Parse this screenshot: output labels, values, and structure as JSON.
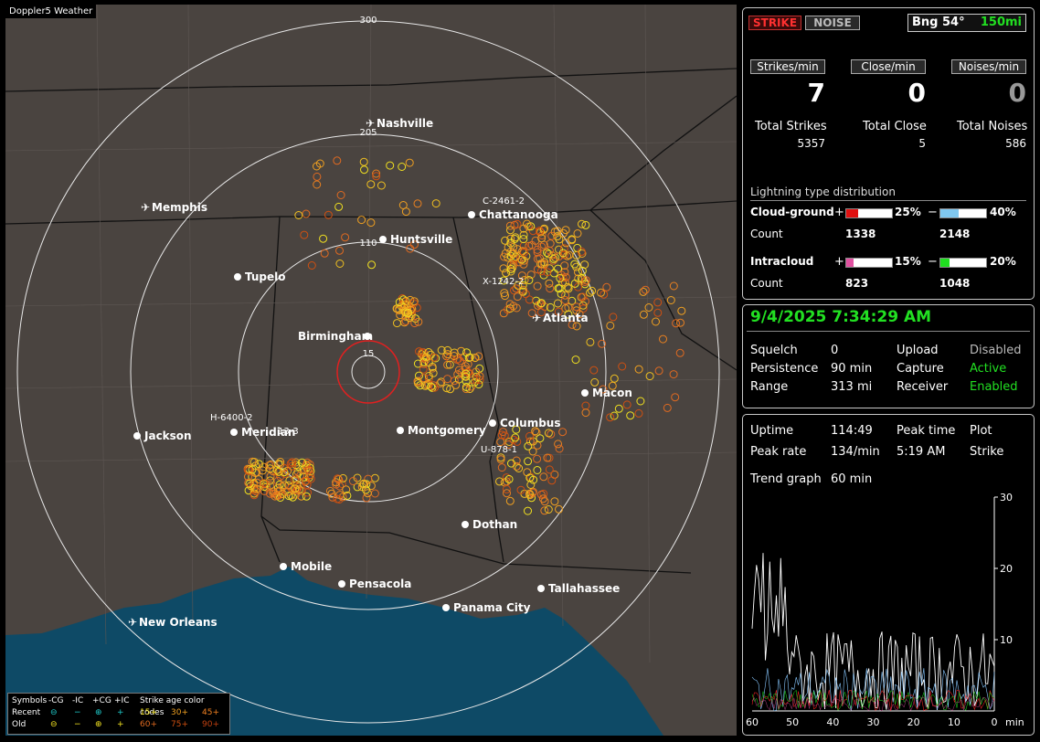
{
  "app_title": "Doppler5 Weather",
  "map": {
    "range_labels": [
      "300",
      "205",
      "110",
      "15"
    ],
    "cities": [
      {
        "name": "Nashville",
        "type": "airport"
      },
      {
        "name": "Memphis",
        "type": "airport"
      },
      {
        "name": "Chattanooga",
        "type": "city"
      },
      {
        "name": "Huntsville",
        "type": "city"
      },
      {
        "name": "Tupelo",
        "type": "city"
      },
      {
        "name": "Atlanta",
        "type": "airport"
      },
      {
        "name": "Birmingham",
        "type": "city"
      },
      {
        "name": "Macon",
        "type": "city"
      },
      {
        "name": "Columbus",
        "type": "city"
      },
      {
        "name": "Jackson",
        "type": "city"
      },
      {
        "name": "Meridian",
        "type": "city"
      },
      {
        "name": "Montgomery",
        "type": "city"
      },
      {
        "name": "Dothan",
        "type": "city"
      },
      {
        "name": "Mobile",
        "type": "city"
      },
      {
        "name": "Pensacola",
        "type": "city"
      },
      {
        "name": "Tallahassee",
        "type": "city"
      },
      {
        "name": "Panama City",
        "type": "city"
      },
      {
        "name": "New Orleans",
        "type": "airport"
      }
    ],
    "storm_labels": [
      "C-2461-2",
      "X-1242-2",
      "H-6400-2",
      "U-878-1",
      "13-3"
    ],
    "legend": {
      "row_labels": [
        "Symbols",
        "Recent",
        "Old"
      ],
      "type_headers": [
        "-CG",
        "-IC",
        "+CG",
        "+IC"
      ],
      "age_header": "Strike age color codes",
      "recent_ages": [
        "15+",
        "30+",
        "45+"
      ],
      "old_ages": [
        "60+",
        "75+",
        "90+"
      ]
    }
  },
  "top": {
    "strike_btn": "STRIKE",
    "noise_btn": "NOISE",
    "bearing": "Bng 54°",
    "range": "150mi",
    "strikes_min_label": "Strikes/min",
    "close_min_label": "Close/min",
    "noises_min_label": "Noises/min",
    "strikes_min": "7",
    "close_min": "0",
    "noises_min": "0",
    "total_strikes_label": "Total Strikes",
    "total_close_label": "Total Close",
    "total_noises_label": "Total Noises",
    "total_strikes": "5357",
    "total_close": "5",
    "total_noises": "586",
    "dist_title": "Lightning type distribution",
    "cg_label": "Cloud-ground",
    "ic_label": "Intracloud",
    "count_label": "Count",
    "plus": "+",
    "minus": "−",
    "cg_plus_pct": "25%",
    "cg_minus_pct": "40%",
    "cg_plus_count": "1338",
    "cg_minus_count": "2148",
    "ic_plus_pct": "15%",
    "ic_minus_pct": "20%",
    "ic_plus_count": "823",
    "ic_minus_count": "1048",
    "cg_plus_frac": 0.25,
    "cg_minus_frac": 0.4,
    "ic_plus_frac": 0.15,
    "ic_minus_frac": 0.2
  },
  "status": {
    "datetime": "9/4/2025 7:34:29 AM",
    "squelch_label": "Squelch",
    "squelch": "0",
    "persistence_label": "Persistence",
    "persistence": "90 min",
    "range_label": "Range",
    "range": "313 mi",
    "upload_label": "Upload",
    "upload": "Disabled",
    "capture_label": "Capture",
    "capture": "Active",
    "receiver_label": "Receiver",
    "receiver": "Enabled"
  },
  "stats": {
    "uptime_label": "Uptime",
    "uptime": "114:49",
    "peak_time_label": "Peak time",
    "plot_label": "Plot",
    "peak_rate_label": "Peak rate",
    "peak_rate": "134/min",
    "peak_time": "5:19 AM",
    "plot": "Strike",
    "trend_label": "Trend graph",
    "trend": "60 min"
  },
  "chart_data": {
    "type": "line",
    "x_ticks": [
      "60",
      "50",
      "40",
      "30",
      "20",
      "10",
      "0"
    ],
    "x_unit": "min",
    "y_ticks": [
      "30",
      "20",
      "10"
    ],
    "ylim": [
      0,
      30
    ],
    "xlim": [
      60,
      0
    ]
  }
}
